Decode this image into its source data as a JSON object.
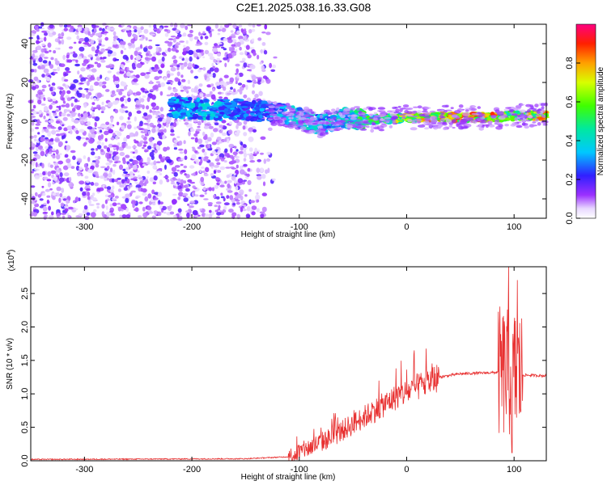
{
  "title": "C2E1.2025.038.16.33.G08",
  "chart_data": [
    {
      "type": "heatmap",
      "xlabel": "Height of straight line (km)",
      "ylabel": "Frequency (Hz)",
      "xlim": [
        -350,
        130
      ],
      "ylim": [
        -50,
        50
      ],
      "xticks": [
        -300,
        -200,
        -100,
        0,
        100
      ],
      "yticks": [
        -40,
        -20,
        0,
        20,
        40
      ],
      "colorbar": {
        "label": "Normalized spectral amplitude",
        "range": [
          0,
          1
        ],
        "ticks": [
          "0.0",
          "0.2",
          "0.4",
          "0.6",
          "0.8"
        ],
        "tick_values": [
          0,
          0.2,
          0.4,
          0.6,
          0.8
        ]
      },
      "ridge": {
        "description_points": [
          {
            "x": -215,
            "y": 7,
            "amp": 0.35
          },
          {
            "x": -185,
            "y": 6,
            "amp": 0.4
          },
          {
            "x": -150,
            "y": 6,
            "amp": 0.3
          },
          {
            "x": -120,
            "y": 4,
            "amp": 0.35
          },
          {
            "x": -100,
            "y": 2,
            "amp": 0.45
          },
          {
            "x": -80,
            "y": -2,
            "amp": 0.4
          },
          {
            "x": -60,
            "y": 2,
            "amp": 0.45
          },
          {
            "x": -40,
            "y": 1,
            "amp": 0.55
          },
          {
            "x": -20,
            "y": 1,
            "amp": 0.65
          },
          {
            "x": 0,
            "y": 2,
            "amp": 0.75
          },
          {
            "x": 40,
            "y": 2,
            "amp": 0.9
          },
          {
            "x": 85,
            "y": 2,
            "amp": 0.85
          },
          {
            "x": 95,
            "y": 3,
            "amp": 0.6
          },
          {
            "x": 130,
            "y": 3,
            "amp": 0.9
          }
        ]
      }
    },
    {
      "type": "line",
      "xlabel": "Height of straight line (km)",
      "ylabel": "SNR (10 * v/v)",
      "multiplier": "(x10",
      "multiplier_exp": "4",
      "multiplier_close": ")",
      "xlim": [
        -350,
        130
      ],
      "ylim": [
        0,
        2.9
      ],
      "xticks": [
        -300,
        -200,
        -100,
        0,
        100
      ],
      "yticks": [
        "0.0",
        "0.5",
        "1.0",
        "1.5",
        "2.0",
        "2.5"
      ],
      "ytick_values": [
        0,
        0.5,
        1.0,
        1.5,
        2.0,
        2.5
      ],
      "color": "#e83030",
      "envelope": [
        {
          "x": -350,
          "y": 0.02
        },
        {
          "x": -150,
          "y": 0.03
        },
        {
          "x": -110,
          "y": 0.06
        },
        {
          "x": -90,
          "y": 0.2
        },
        {
          "x": -70,
          "y": 0.35
        },
        {
          "x": -50,
          "y": 0.55
        },
        {
          "x": -30,
          "y": 0.75
        },
        {
          "x": -10,
          "y": 0.95
        },
        {
          "x": 10,
          "y": 1.1
        },
        {
          "x": 30,
          "y": 1.25
        },
        {
          "x": 50,
          "y": 1.3
        },
        {
          "x": 85,
          "y": 1.32
        },
        {
          "x": 110,
          "y": 1.28
        },
        {
          "x": 130,
          "y": 1.27
        }
      ],
      "peaks": [
        {
          "x": 7,
          "y": 1.65
        },
        {
          "x": -10,
          "y": 1.38
        },
        {
          "x": 95,
          "y": 2.9
        },
        {
          "x": 98,
          "y": 0.12
        },
        {
          "x": 103,
          "y": 2.7
        }
      ]
    }
  ]
}
